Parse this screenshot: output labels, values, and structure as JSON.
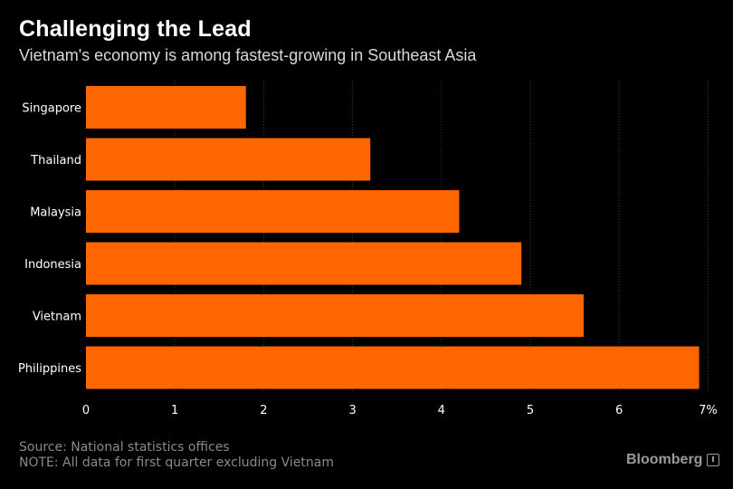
{
  "header": {
    "title": "Challenging the Lead",
    "subtitle": "Vietnam's economy is among fastest-growing in Southeast Asia"
  },
  "footer": {
    "source": "Source: National statistics offices",
    "note": "NOTE: All data for first quarter excluding Vietnam",
    "brand": "Bloomberg"
  },
  "colors": {
    "background": "#000000",
    "bar": "#ff6600",
    "grid": "#3a3a3a",
    "label": "#ffffff"
  },
  "chart_data": {
    "type": "bar",
    "orientation": "horizontal",
    "title": "Challenging the Lead",
    "subtitle": "Vietnam's economy is among fastest-growing in Southeast Asia",
    "categories": [
      "Singapore",
      "Thailand",
      "Malaysia",
      "Indonesia",
      "Vietnam",
      "Philippines"
    ],
    "values": [
      1.8,
      3.2,
      4.2,
      4.9,
      5.6,
      6.9
    ],
    "xlim": [
      0,
      7
    ],
    "xticks": [
      "0",
      "1",
      "2",
      "3",
      "4",
      "5",
      "6",
      "7%"
    ],
    "xlabel": "",
    "ylabel": "",
    "grid": "vertical dotted"
  }
}
